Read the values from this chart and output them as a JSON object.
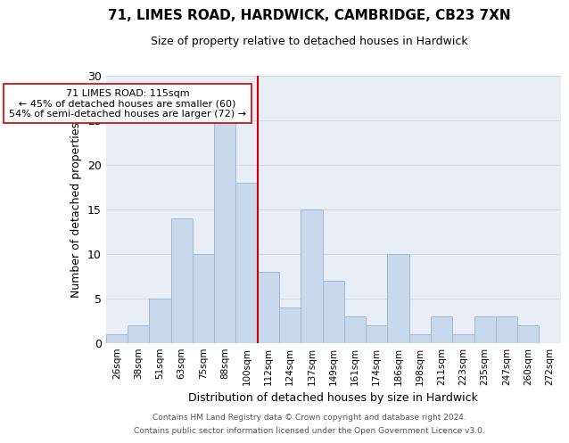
{
  "title": "71, LIMES ROAD, HARDWICK, CAMBRIDGE, CB23 7XN",
  "subtitle": "Size of property relative to detached houses in Hardwick",
  "xlabel": "Distribution of detached houses by size in Hardwick",
  "ylabel": "Number of detached properties",
  "bin_labels": [
    "26sqm",
    "38sqm",
    "51sqm",
    "63sqm",
    "75sqm",
    "88sqm",
    "100sqm",
    "112sqm",
    "124sqm",
    "137sqm",
    "149sqm",
    "161sqm",
    "174sqm",
    "186sqm",
    "198sqm",
    "211sqm",
    "223sqm",
    "235sqm",
    "247sqm",
    "260sqm",
    "272sqm"
  ],
  "bar_heights": [
    1,
    2,
    5,
    14,
    10,
    25,
    18,
    8,
    4,
    15,
    7,
    3,
    2,
    10,
    1,
    3,
    1,
    3,
    3,
    2,
    0
  ],
  "bar_color": "#c8d9ed",
  "bar_edge_color": "#a0b8d0",
  "vline_x": 6.5,
  "vline_color": "#cc0000",
  "annotation_text": "71 LIMES ROAD: 115sqm\n← 45% of detached houses are smaller (60)\n54% of semi-detached houses are larger (72) →",
  "annotation_box_edge": "#cc0000",
  "ylim": [
    0,
    30
  ],
  "yticks": [
    0,
    5,
    10,
    15,
    20,
    25,
    30
  ],
  "grid_color": "#d0d8e8",
  "bg_color": "#e8eef5",
  "footer_line1": "Contains HM Land Registry data © Crown copyright and database right 2024.",
  "footer_line2": "Contains public sector information licensed under the Open Government Licence v3.0."
}
